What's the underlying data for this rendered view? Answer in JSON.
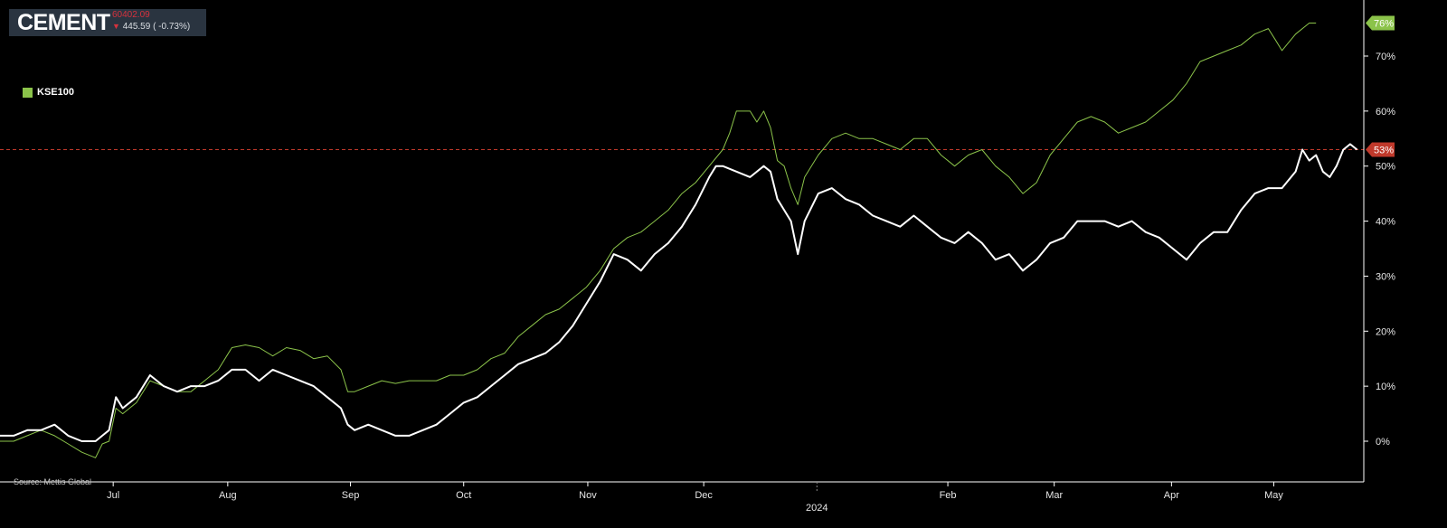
{
  "header": {
    "title": "CEMENT",
    "price": "60402.09",
    "change": "445.59 ( -0.73%)",
    "direction": "down"
  },
  "legend": {
    "label": "KSE100",
    "color": "#8bc34a"
  },
  "source": "Source: Mettis Global",
  "colors": {
    "kse100": "#8bc34a",
    "cement": "#ffffff",
    "badge_kse": "#8bc34a",
    "badge_cement": "#c0392b",
    "ref_line": "#c0392b"
  },
  "chart_data": {
    "type": "line",
    "xlabel": "",
    "ylabel": "",
    "ylim": [
      -7,
      78
    ],
    "y_ticks": [
      0,
      10,
      20,
      30,
      40,
      50,
      60,
      70
    ],
    "y_tick_labels": [
      "0%",
      "10%",
      "20%",
      "30%",
      "40%",
      "50%",
      "60%",
      "70%"
    ],
    "x_ticks": [
      {
        "label": "Jul",
        "x": 0.083
      },
      {
        "label": "Aug",
        "x": 0.167
      },
      {
        "label": "Sep",
        "x": 0.257
      },
      {
        "label": "Oct",
        "x": 0.34
      },
      {
        "label": "Nov",
        "x": 0.431
      },
      {
        "label": "Dec",
        "x": 0.516
      },
      {
        "label": "Feb",
        "x": 0.695
      },
      {
        "label": "Mar",
        "x": 0.773
      },
      {
        "label": "Apr",
        "x": 0.859
      },
      {
        "label": "May",
        "x": 0.934
      }
    ],
    "year_label": {
      "label": "2024",
      "x": 0.599
    },
    "reference_line": {
      "y": 53,
      "label": "53%"
    },
    "grid": false,
    "series": [
      {
        "name": "KSE100",
        "end_label": "76%",
        "points": [
          [
            0,
            0
          ],
          [
            0.01,
            0
          ],
          [
            0.02,
            1
          ],
          [
            0.03,
            2
          ],
          [
            0.04,
            1
          ],
          [
            0.05,
            -0.5
          ],
          [
            0.06,
            -2
          ],
          [
            0.07,
            -3
          ],
          [
            0.075,
            -0.5
          ],
          [
            0.08,
            0
          ],
          [
            0.085,
            6
          ],
          [
            0.09,
            5
          ],
          [
            0.1,
            7
          ],
          [
            0.11,
            11
          ],
          [
            0.12,
            10
          ],
          [
            0.13,
            9
          ],
          [
            0.14,
            9
          ],
          [
            0.15,
            11
          ],
          [
            0.16,
            13
          ],
          [
            0.17,
            17
          ],
          [
            0.18,
            17.5
          ],
          [
            0.19,
            17
          ],
          [
            0.2,
            15.5
          ],
          [
            0.21,
            17
          ],
          [
            0.22,
            16.5
          ],
          [
            0.23,
            15
          ],
          [
            0.24,
            15.5
          ],
          [
            0.25,
            13
          ],
          [
            0.255,
            9
          ],
          [
            0.26,
            9
          ],
          [
            0.27,
            10
          ],
          [
            0.28,
            11
          ],
          [
            0.29,
            10.5
          ],
          [
            0.3,
            11
          ],
          [
            0.31,
            11
          ],
          [
            0.32,
            11
          ],
          [
            0.33,
            12
          ],
          [
            0.34,
            12
          ],
          [
            0.35,
            13
          ],
          [
            0.36,
            15
          ],
          [
            0.37,
            16
          ],
          [
            0.38,
            19
          ],
          [
            0.39,
            21
          ],
          [
            0.4,
            23
          ],
          [
            0.41,
            24
          ],
          [
            0.42,
            26
          ],
          [
            0.43,
            28
          ],
          [
            0.44,
            31
          ],
          [
            0.45,
            35
          ],
          [
            0.46,
            37
          ],
          [
            0.47,
            38
          ],
          [
            0.48,
            40
          ],
          [
            0.49,
            42
          ],
          [
            0.5,
            45
          ],
          [
            0.51,
            47
          ],
          [
            0.52,
            50
          ],
          [
            0.53,
            53
          ],
          [
            0.535,
            56
          ],
          [
            0.54,
            60
          ],
          [
            0.55,
            60
          ],
          [
            0.555,
            58
          ],
          [
            0.56,
            60
          ],
          [
            0.565,
            57
          ],
          [
            0.57,
            51
          ],
          [
            0.575,
            50
          ],
          [
            0.58,
            46
          ],
          [
            0.585,
            43
          ],
          [
            0.59,
            48
          ],
          [
            0.6,
            52
          ],
          [
            0.61,
            55
          ],
          [
            0.62,
            56
          ],
          [
            0.63,
            55
          ],
          [
            0.64,
            55
          ],
          [
            0.65,
            54
          ],
          [
            0.66,
            53
          ],
          [
            0.67,
            55
          ],
          [
            0.68,
            55
          ],
          [
            0.69,
            52
          ],
          [
            0.7,
            50
          ],
          [
            0.71,
            52
          ],
          [
            0.72,
            53
          ],
          [
            0.73,
            50
          ],
          [
            0.74,
            48
          ],
          [
            0.75,
            45
          ],
          [
            0.76,
            47
          ],
          [
            0.77,
            52
          ],
          [
            0.78,
            55
          ],
          [
            0.79,
            58
          ],
          [
            0.8,
            59
          ],
          [
            0.81,
            58
          ],
          [
            0.82,
            56
          ],
          [
            0.83,
            57
          ],
          [
            0.84,
            58
          ],
          [
            0.85,
            60
          ],
          [
            0.86,
            62
          ],
          [
            0.87,
            65
          ],
          [
            0.88,
            69
          ],
          [
            0.89,
            70
          ],
          [
            0.9,
            71
          ],
          [
            0.91,
            72
          ],
          [
            0.92,
            74
          ],
          [
            0.93,
            75
          ],
          [
            0.935,
            73
          ],
          [
            0.94,
            71
          ],
          [
            0.95,
            74
          ],
          [
            0.96,
            76
          ],
          [
            0.965,
            76
          ]
        ]
      },
      {
        "name": "",
        "end_label": "53%",
        "points": [
          [
            0,
            1
          ],
          [
            0.01,
            1
          ],
          [
            0.02,
            2
          ],
          [
            0.03,
            2
          ],
          [
            0.04,
            3
          ],
          [
            0.05,
            1
          ],
          [
            0.06,
            0
          ],
          [
            0.07,
            0
          ],
          [
            0.075,
            1
          ],
          [
            0.08,
            2
          ],
          [
            0.085,
            8
          ],
          [
            0.09,
            6
          ],
          [
            0.1,
            8
          ],
          [
            0.11,
            12
          ],
          [
            0.12,
            10
          ],
          [
            0.13,
            9
          ],
          [
            0.14,
            10
          ],
          [
            0.15,
            10
          ],
          [
            0.16,
            11
          ],
          [
            0.17,
            13
          ],
          [
            0.18,
            13
          ],
          [
            0.19,
            11
          ],
          [
            0.2,
            13
          ],
          [
            0.21,
            12
          ],
          [
            0.22,
            11
          ],
          [
            0.23,
            10
          ],
          [
            0.24,
            8
          ],
          [
            0.25,
            6
          ],
          [
            0.255,
            3
          ],
          [
            0.26,
            2
          ],
          [
            0.27,
            3
          ],
          [
            0.28,
            2
          ],
          [
            0.29,
            1
          ],
          [
            0.3,
            1
          ],
          [
            0.31,
            2
          ],
          [
            0.32,
            3
          ],
          [
            0.33,
            5
          ],
          [
            0.34,
            7
          ],
          [
            0.35,
            8
          ],
          [
            0.36,
            10
          ],
          [
            0.37,
            12
          ],
          [
            0.38,
            14
          ],
          [
            0.39,
            15
          ],
          [
            0.4,
            16
          ],
          [
            0.41,
            18
          ],
          [
            0.42,
            21
          ],
          [
            0.43,
            25
          ],
          [
            0.44,
            29
          ],
          [
            0.45,
            34
          ],
          [
            0.46,
            33
          ],
          [
            0.47,
            31
          ],
          [
            0.48,
            34
          ],
          [
            0.49,
            36
          ],
          [
            0.5,
            39
          ],
          [
            0.51,
            43
          ],
          [
            0.52,
            48
          ],
          [
            0.525,
            50
          ],
          [
            0.53,
            50
          ],
          [
            0.54,
            49
          ],
          [
            0.55,
            48
          ],
          [
            0.56,
            50
          ],
          [
            0.565,
            49
          ],
          [
            0.57,
            44
          ],
          [
            0.575,
            42
          ],
          [
            0.58,
            40
          ],
          [
            0.585,
            34
          ],
          [
            0.59,
            40
          ],
          [
            0.6,
            45
          ],
          [
            0.61,
            46
          ],
          [
            0.62,
            44
          ],
          [
            0.63,
            43
          ],
          [
            0.64,
            41
          ],
          [
            0.65,
            40
          ],
          [
            0.66,
            39
          ],
          [
            0.67,
            41
          ],
          [
            0.68,
            39
          ],
          [
            0.69,
            37
          ],
          [
            0.7,
            36
          ],
          [
            0.71,
            38
          ],
          [
            0.72,
            36
          ],
          [
            0.73,
            33
          ],
          [
            0.74,
            34
          ],
          [
            0.75,
            31
          ],
          [
            0.76,
            33
          ],
          [
            0.77,
            36
          ],
          [
            0.78,
            37
          ],
          [
            0.79,
            40
          ],
          [
            0.8,
            40
          ],
          [
            0.81,
            40
          ],
          [
            0.82,
            39
          ],
          [
            0.83,
            40
          ],
          [
            0.84,
            38
          ],
          [
            0.85,
            37
          ],
          [
            0.86,
            35
          ],
          [
            0.87,
            33
          ],
          [
            0.88,
            36
          ],
          [
            0.89,
            38
          ],
          [
            0.9,
            38
          ],
          [
            0.91,
            42
          ],
          [
            0.92,
            45
          ],
          [
            0.93,
            46
          ],
          [
            0.94,
            46
          ],
          [
            0.95,
            49
          ],
          [
            0.955,
            53
          ],
          [
            0.96,
            51
          ],
          [
            0.965,
            52
          ],
          [
            0.97,
            49
          ],
          [
            0.975,
            48
          ],
          [
            0.98,
            50
          ],
          [
            0.985,
            53
          ],
          [
            0.99,
            54
          ],
          [
            0.995,
            53
          ]
        ]
      }
    ]
  }
}
